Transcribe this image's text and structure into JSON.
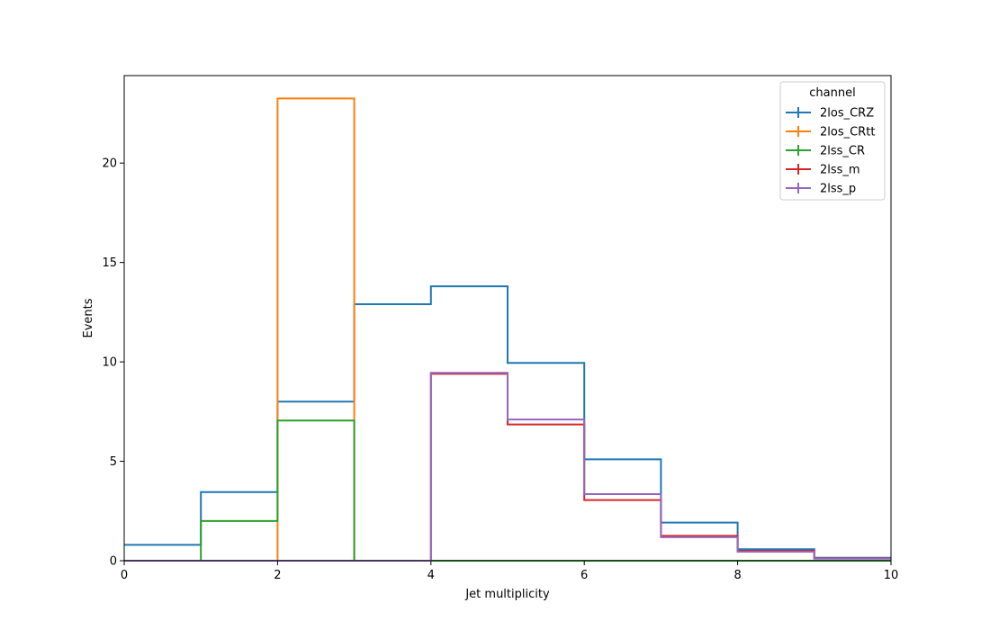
{
  "chart_data": {
    "type": "step",
    "xlabel": "Jet multiplicity",
    "ylabel": "Events",
    "xlim": [
      0,
      10
    ],
    "ylim": [
      0,
      24.4
    ],
    "x_ticks": [
      "0",
      "2",
      "4",
      "6",
      "8",
      "10"
    ],
    "y_ticks": [
      "0",
      "5",
      "10",
      "15",
      "20"
    ],
    "bin_edges": [
      0,
      1,
      2,
      3,
      4,
      5,
      6,
      7,
      8,
      9,
      10
    ],
    "grid": false,
    "legend": {
      "title": "channel",
      "placement": "top-right"
    },
    "series": [
      {
        "name": "2los_CRZ",
        "color": "#1f77b4",
        "values": [
          0.8,
          3.45,
          8.0,
          12.9,
          13.8,
          9.95,
          5.1,
          1.92,
          0.58,
          0.15
        ]
      },
      {
        "name": "2los_CRtt",
        "color": "#ff7f0e",
        "values": [
          0,
          0,
          23.25,
          0,
          0,
          0,
          0,
          0,
          0,
          0
        ]
      },
      {
        "name": "2lss_CR",
        "color": "#2ca02c",
        "values": [
          0,
          2.0,
          7.05,
          0,
          0,
          0,
          0,
          0,
          0,
          0
        ]
      },
      {
        "name": "2lss_m",
        "color": "#d62728",
        "values": [
          0,
          0,
          0,
          0,
          9.4,
          6.85,
          3.05,
          1.25,
          0.5,
          0.12
        ]
      },
      {
        "name": "2lss_p",
        "color": "#9467bd",
        "values": [
          0,
          0,
          0,
          0,
          9.45,
          7.1,
          3.35,
          1.18,
          0.45,
          0.1
        ]
      }
    ]
  }
}
